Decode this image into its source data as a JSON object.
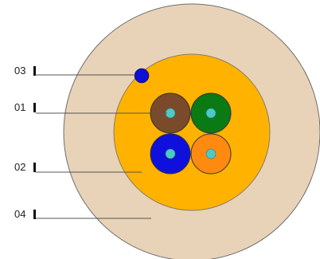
{
  "colors": {
    "outer_jacket": "#e8d3b8",
    "outer_jacket_stroke": "#6e6e6e",
    "inner_filler": "#ffb300",
    "inner_filler_stroke": "#8a7a60",
    "core_center": "#4fc9c4",
    "leader_line": "#555555",
    "tick": "#111111",
    "ripcord": "#0d10d6"
  },
  "callouts": [
    {
      "id": "ripcord",
      "label": "03"
    },
    {
      "id": "fiber-core",
      "label": "01"
    },
    {
      "id": "inner-filler",
      "label": "02"
    },
    {
      "id": "outer-jacket",
      "label": "04"
    }
  ],
  "cores": [
    {
      "name": "brown-core",
      "color": "#7a4a2b"
    },
    {
      "name": "green-core",
      "color": "#0a7a14"
    },
    {
      "name": "blue-core",
      "color": "#1010dd"
    },
    {
      "name": "orange-core",
      "color": "#ff8a10"
    }
  ]
}
